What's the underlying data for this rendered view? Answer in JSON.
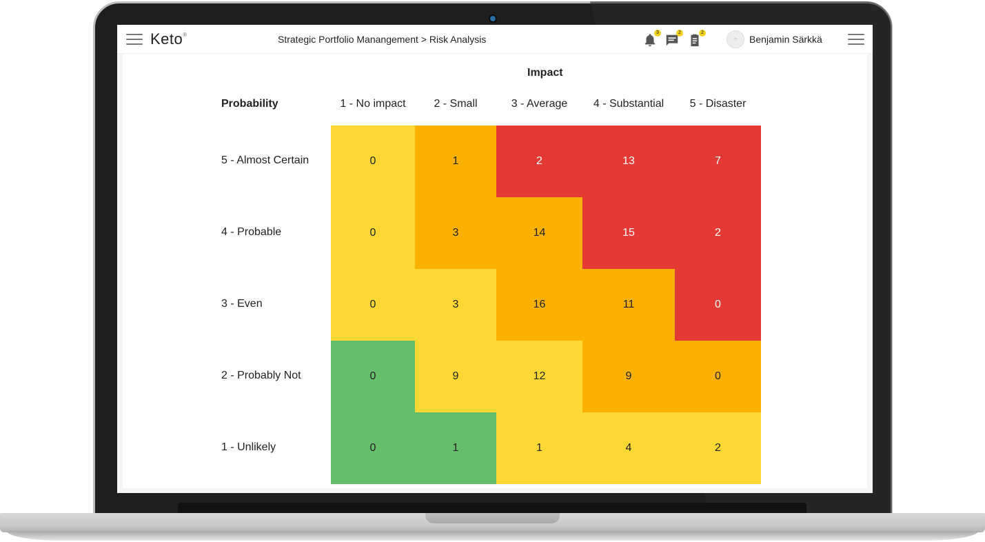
{
  "header": {
    "logo": "Keto",
    "logo_mark": "®",
    "breadcrumb": "Strategic Portfolio Manangement > Risk Analysis",
    "notifications_count": "3",
    "messages_count": "2",
    "tasks_count": "2",
    "user_name": "Benjamin Särkkä"
  },
  "matrix": {
    "impact_title": "Impact",
    "probability_title": "Probability",
    "impact_levels": [
      "1 - No impact",
      "2 - Small",
      "3 - Average",
      "4 - Substantial",
      "5 - Disaster"
    ],
    "probability_levels": [
      "5 - Almost Certain",
      "4 - Probable",
      "3 - Even",
      "2 - Probably Not",
      "1 - Unlikely"
    ],
    "values": [
      [
        0,
        1,
        2,
        13,
        7
      ],
      [
        0,
        3,
        14,
        15,
        2
      ],
      [
        0,
        3,
        16,
        11,
        0
      ],
      [
        0,
        9,
        12,
        9,
        0
      ],
      [
        0,
        1,
        1,
        4,
        2
      ]
    ],
    "levels": [
      [
        "yellow",
        "orange",
        "red",
        "red",
        "red"
      ],
      [
        "yellow",
        "orange",
        "orange",
        "red",
        "red"
      ],
      [
        "yellow",
        "yellow",
        "orange",
        "orange",
        "red"
      ],
      [
        "green",
        "yellow",
        "yellow",
        "orange",
        "orange"
      ],
      [
        "green",
        "green",
        "yellow",
        "yellow",
        "yellow"
      ]
    ],
    "colors": {
      "green": "#66bd6b",
      "yellow": "#fdd835",
      "orange": "#fbb104",
      "red": "#e53935"
    }
  }
}
